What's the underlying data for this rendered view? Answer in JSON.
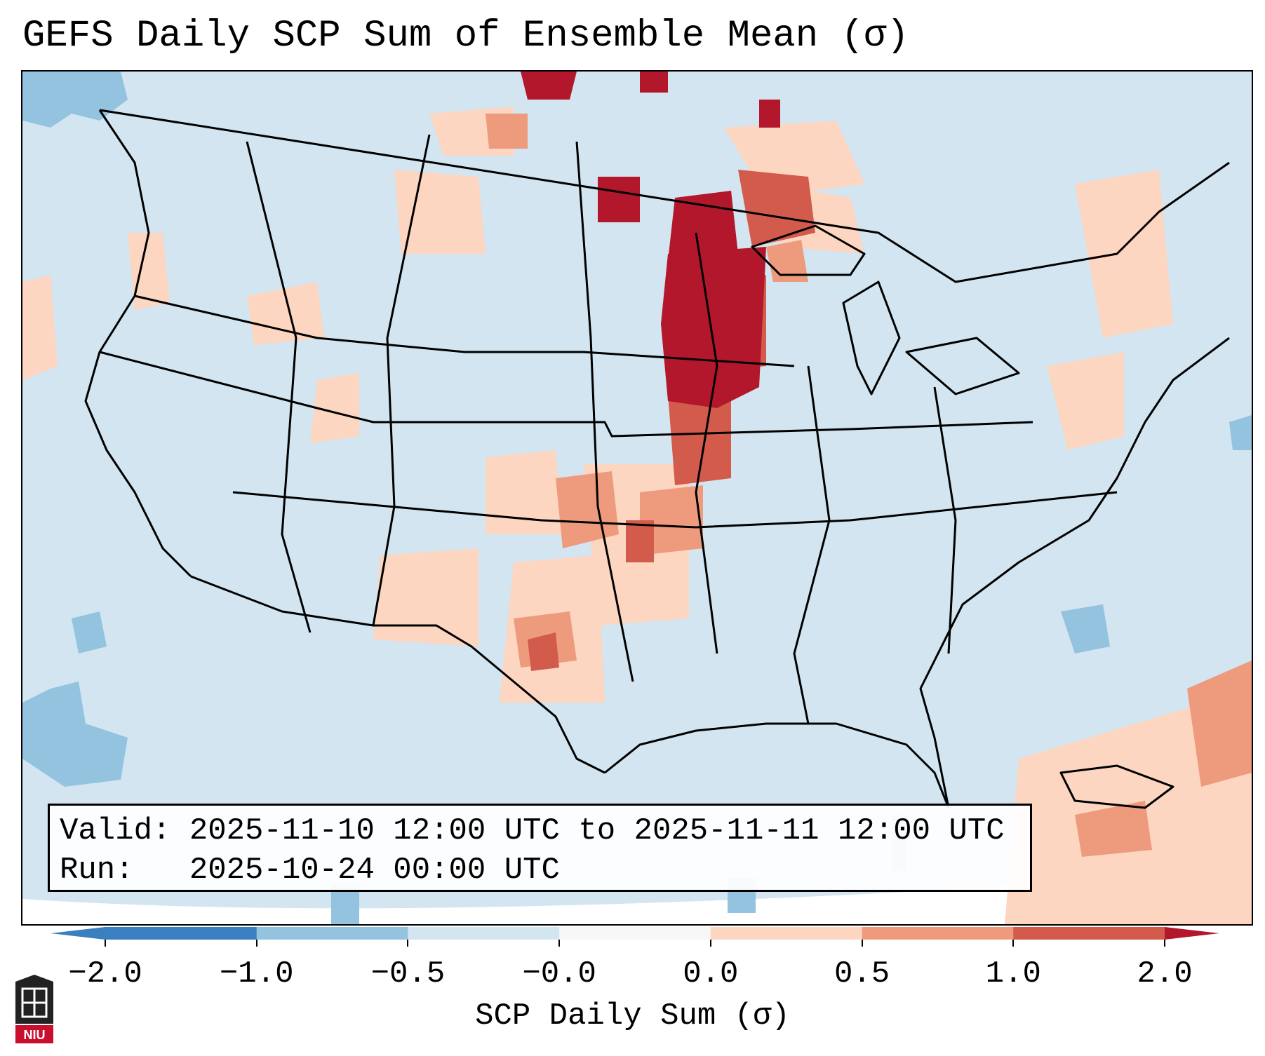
{
  "title": "GEFS Daily SCP Sum of Ensemble Mean (σ)",
  "info": {
    "valid_label": "Valid:",
    "valid_value": "2025-11-10 12:00 UTC to 2025-11-11 12:00 UTC",
    "run_label": "Run:",
    "run_value": "2025-10-24 00:00 UTC"
  },
  "colorbar": {
    "label": "SCP Daily Sum (σ)",
    "tick_labels": [
      "−2.0",
      "−1.0",
      "−0.5",
      "−0.0",
      "0.0",
      "0.5",
      "1.0",
      "2.0"
    ],
    "colors": [
      "#3a7fc0",
      "#93c3df",
      "#d2e5f0",
      "#f7f7f7",
      "#fcd6c1",
      "#ee9a7d",
      "#d25b4c",
      "#b2172b"
    ],
    "extend": "both"
  },
  "logo": {
    "name": "NIU"
  },
  "map": {
    "region": "Contiguous United States",
    "background_color": "#d2e5f0",
    "anomaly_regions": [
      {
        "area": "Upper Midwest (Minnesota, Wisconsin, Iowa)",
        "level": "> 2.0"
      },
      {
        "area": "Northern Great Plains and Ontario",
        "level": "1.0 to 2.0"
      },
      {
        "area": "Southern Plains (Kansas, Oklahoma, Texas)",
        "level": "0.5 to 1.0"
      },
      {
        "area": "Pacific Northwest coast",
        "level": "0.0 to 0.5"
      },
      {
        "area": "Eastern Pacific off Baja California",
        "level": "-1.0 to -0.5"
      },
      {
        "area": "Western Atlantic near Bahamas",
        "level": "0.5 to 1.0"
      }
    ]
  }
}
